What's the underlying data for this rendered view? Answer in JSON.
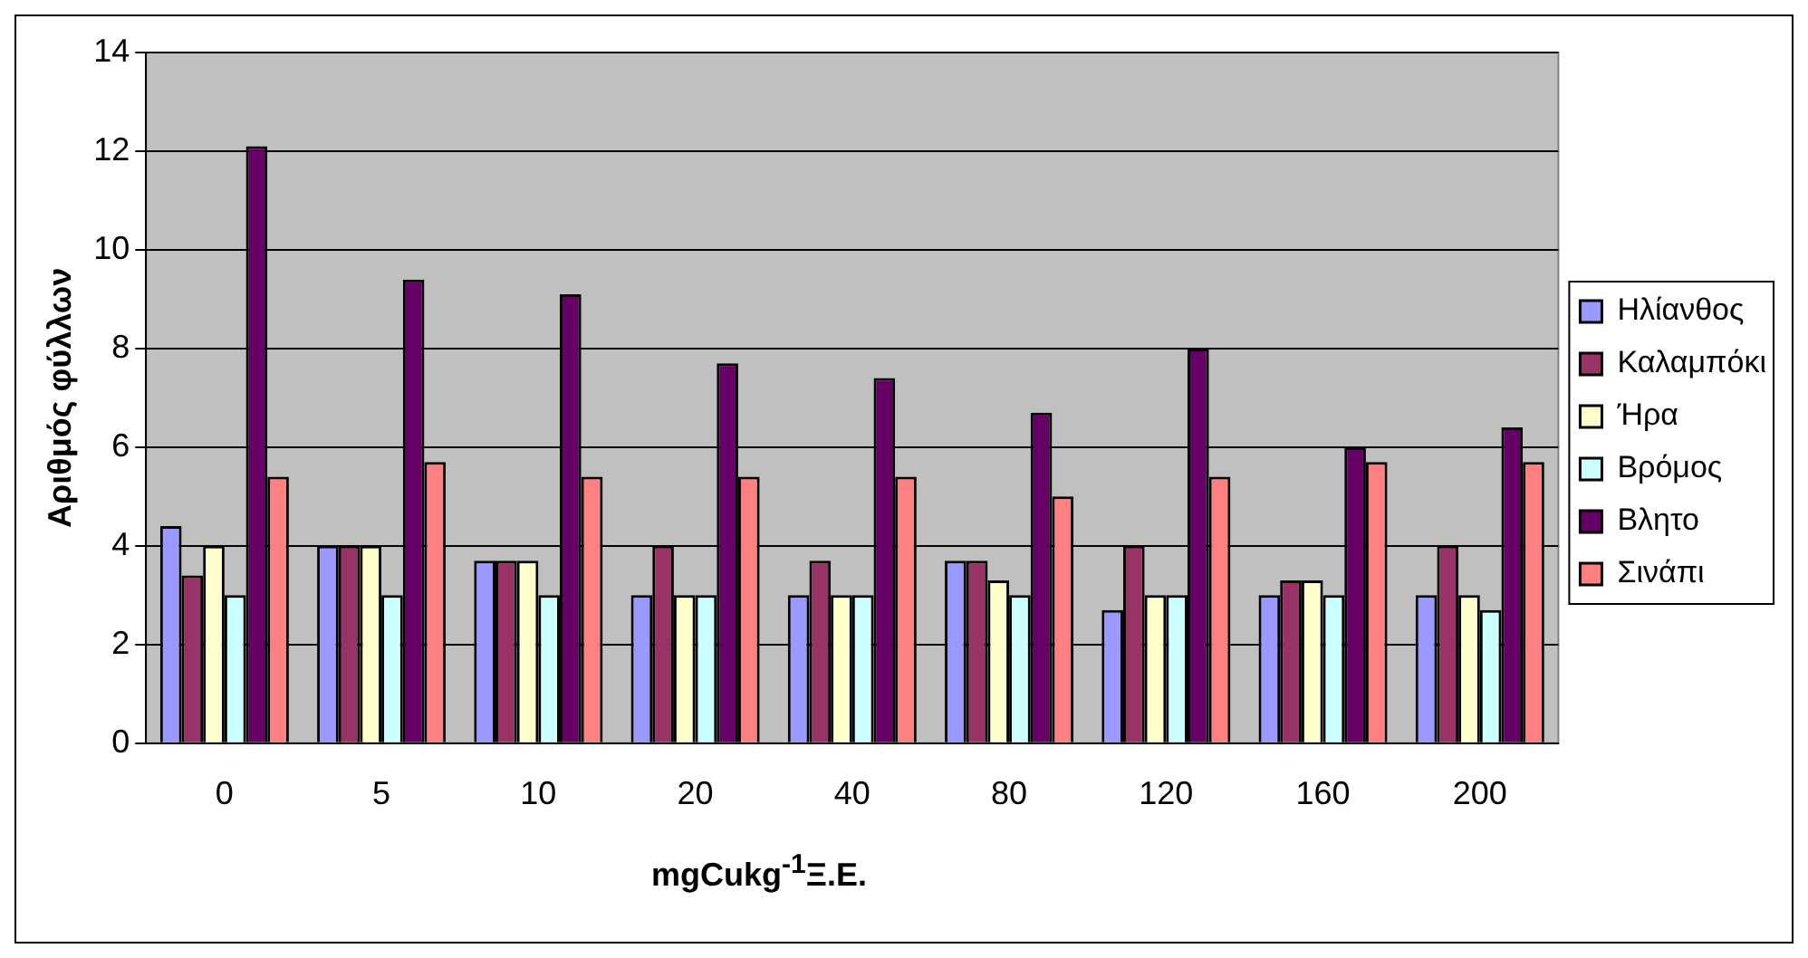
{
  "chart_data": {
    "type": "bar",
    "xlabel": "mgCukg$^{-1}$Ξ.Ε.",
    "ylabel": "Αριθμός φύλλων",
    "categories": [
      "0",
      "5",
      "10",
      "20",
      "40",
      "80",
      "120",
      "160",
      "200"
    ],
    "series": [
      {
        "name": "Ηλίανθος",
        "color": "#9999ff",
        "values": [
          4.4,
          4.0,
          3.7,
          3.0,
          3.0,
          3.7,
          2.7,
          3.0,
          3.0
        ]
      },
      {
        "name": "Καλαμπόκι",
        "color": "#993366",
        "values": [
          3.4,
          4.0,
          3.7,
          4.0,
          3.7,
          3.7,
          4.0,
          3.3,
          4.0
        ]
      },
      {
        "name": "Ήρα",
        "color": "#ffffcc",
        "values": [
          4.0,
          4.0,
          3.7,
          3.0,
          3.0,
          3.3,
          3.0,
          3.3,
          3.0
        ]
      },
      {
        "name": "Βρόμος",
        "color": "#ccffff",
        "values": [
          3.0,
          3.0,
          3.0,
          3.0,
          3.0,
          3.0,
          3.0,
          3.0,
          2.7
        ]
      },
      {
        "name": "Βλητο",
        "color": "#660066",
        "values": [
          12.1,
          9.4,
          9.1,
          7.7,
          7.4,
          6.7,
          8.0,
          6.0,
          6.4
        ]
      },
      {
        "name": "Σινάπι",
        "color": "#ff8080",
        "values": [
          5.4,
          5.7,
          5.4,
          5.4,
          5.4,
          5.0,
          5.4,
          5.7,
          5.7
        ]
      }
    ],
    "ylim": [
      0,
      14
    ],
    "yticks": [
      0,
      2,
      4,
      6,
      8,
      10,
      12,
      14
    ],
    "grid": "y",
    "legend": "right"
  }
}
